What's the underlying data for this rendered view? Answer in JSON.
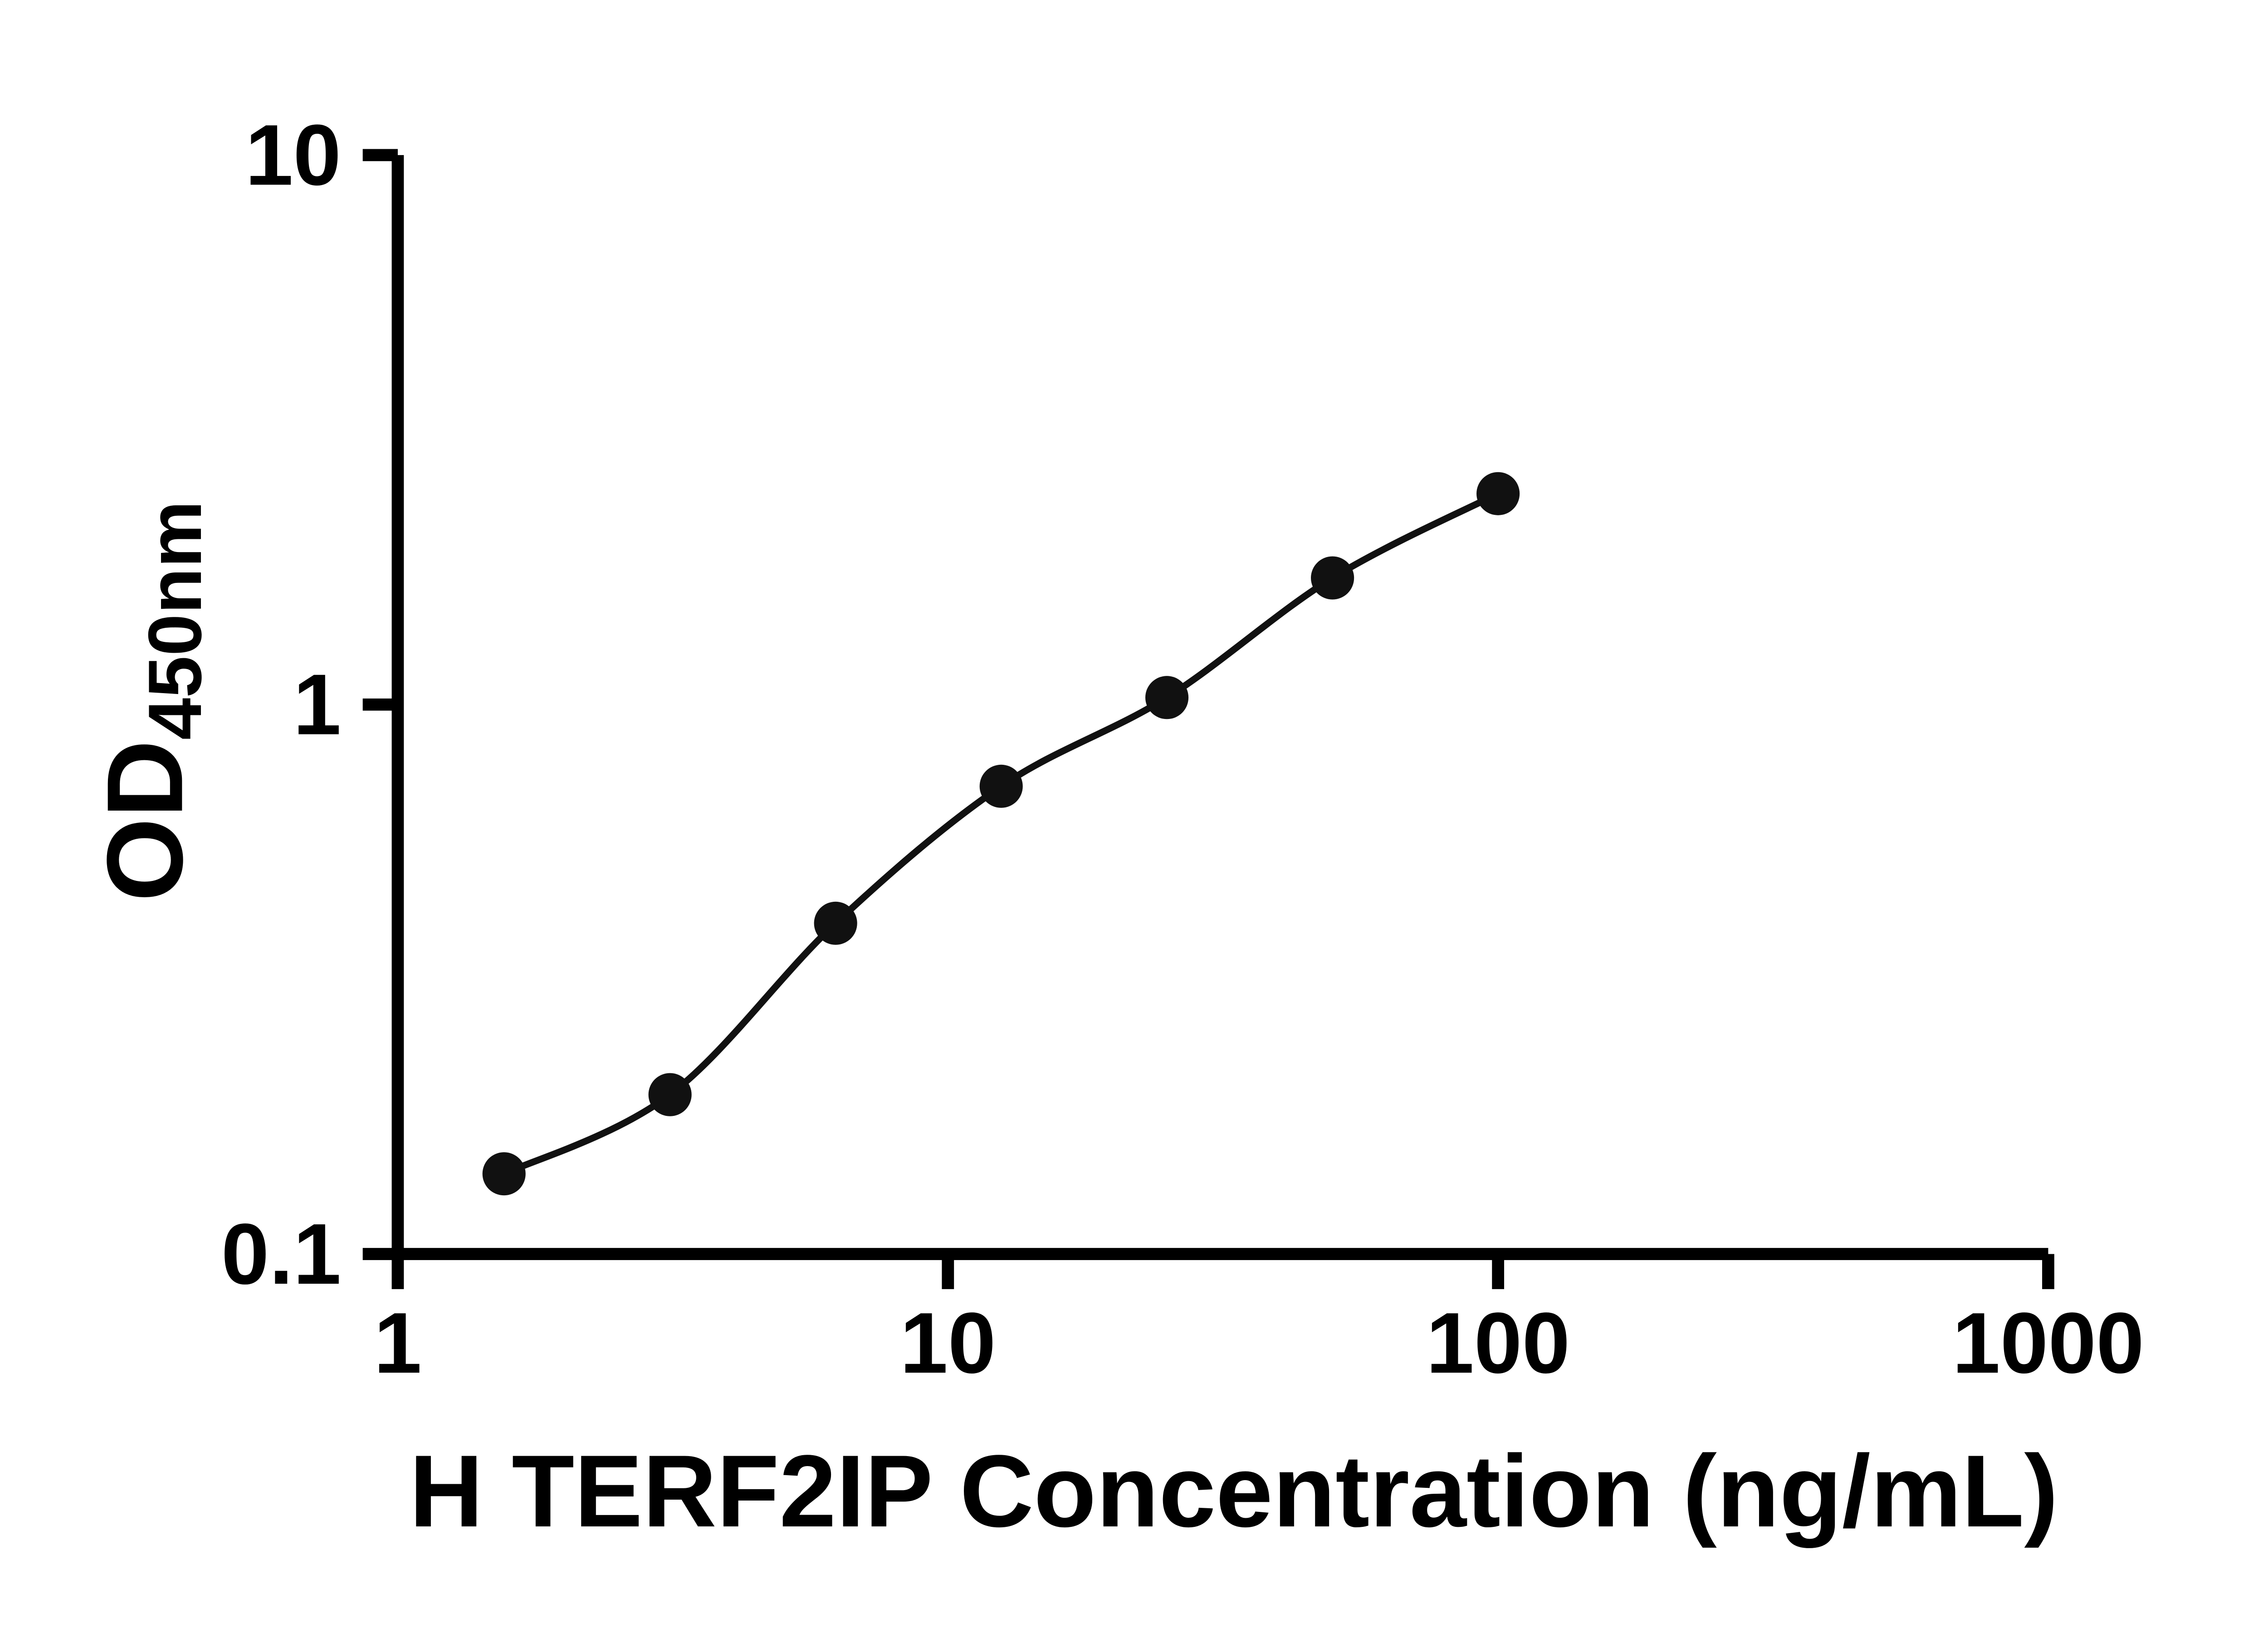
{
  "figure": {
    "background": "#ffffff"
  },
  "chart_data": {
    "type": "scatter",
    "title": "",
    "xlabel": "H TERF2IP Concentration (ng/mL)",
    "ylabel": "OD",
    "ylabel_subscript": "450nm",
    "x_scale": "log10",
    "y_scale": "log10",
    "xlim": [
      1,
      1000
    ],
    "ylim": [
      0.1,
      10
    ],
    "grid": false,
    "legend": "none",
    "x_ticks": [
      {
        "value": 1,
        "label": "1"
      },
      {
        "value": 10,
        "label": "10"
      },
      {
        "value": 100,
        "label": "100"
      },
      {
        "value": 1000,
        "label": "1000"
      }
    ],
    "y_ticks": [
      {
        "value": 0.1,
        "label": "0.1"
      },
      {
        "value": 1,
        "label": "1"
      },
      {
        "value": 10,
        "label": "10"
      }
    ],
    "series": [
      {
        "marker": "filled-circle",
        "fit_line": true,
        "points": [
          {
            "x": 1.56,
            "y": 0.14
          },
          {
            "x": 3.125,
            "y": 0.195
          },
          {
            "x": 6.25,
            "y": 0.4
          },
          {
            "x": 12.5,
            "y": 0.71
          },
          {
            "x": 25,
            "y": 1.03
          },
          {
            "x": 50,
            "y": 1.7
          },
          {
            "x": 100,
            "y": 2.42
          }
        ]
      }
    ],
    "colors": {
      "axis": "#000000",
      "marker": "#111111",
      "line": "#111111"
    }
  }
}
